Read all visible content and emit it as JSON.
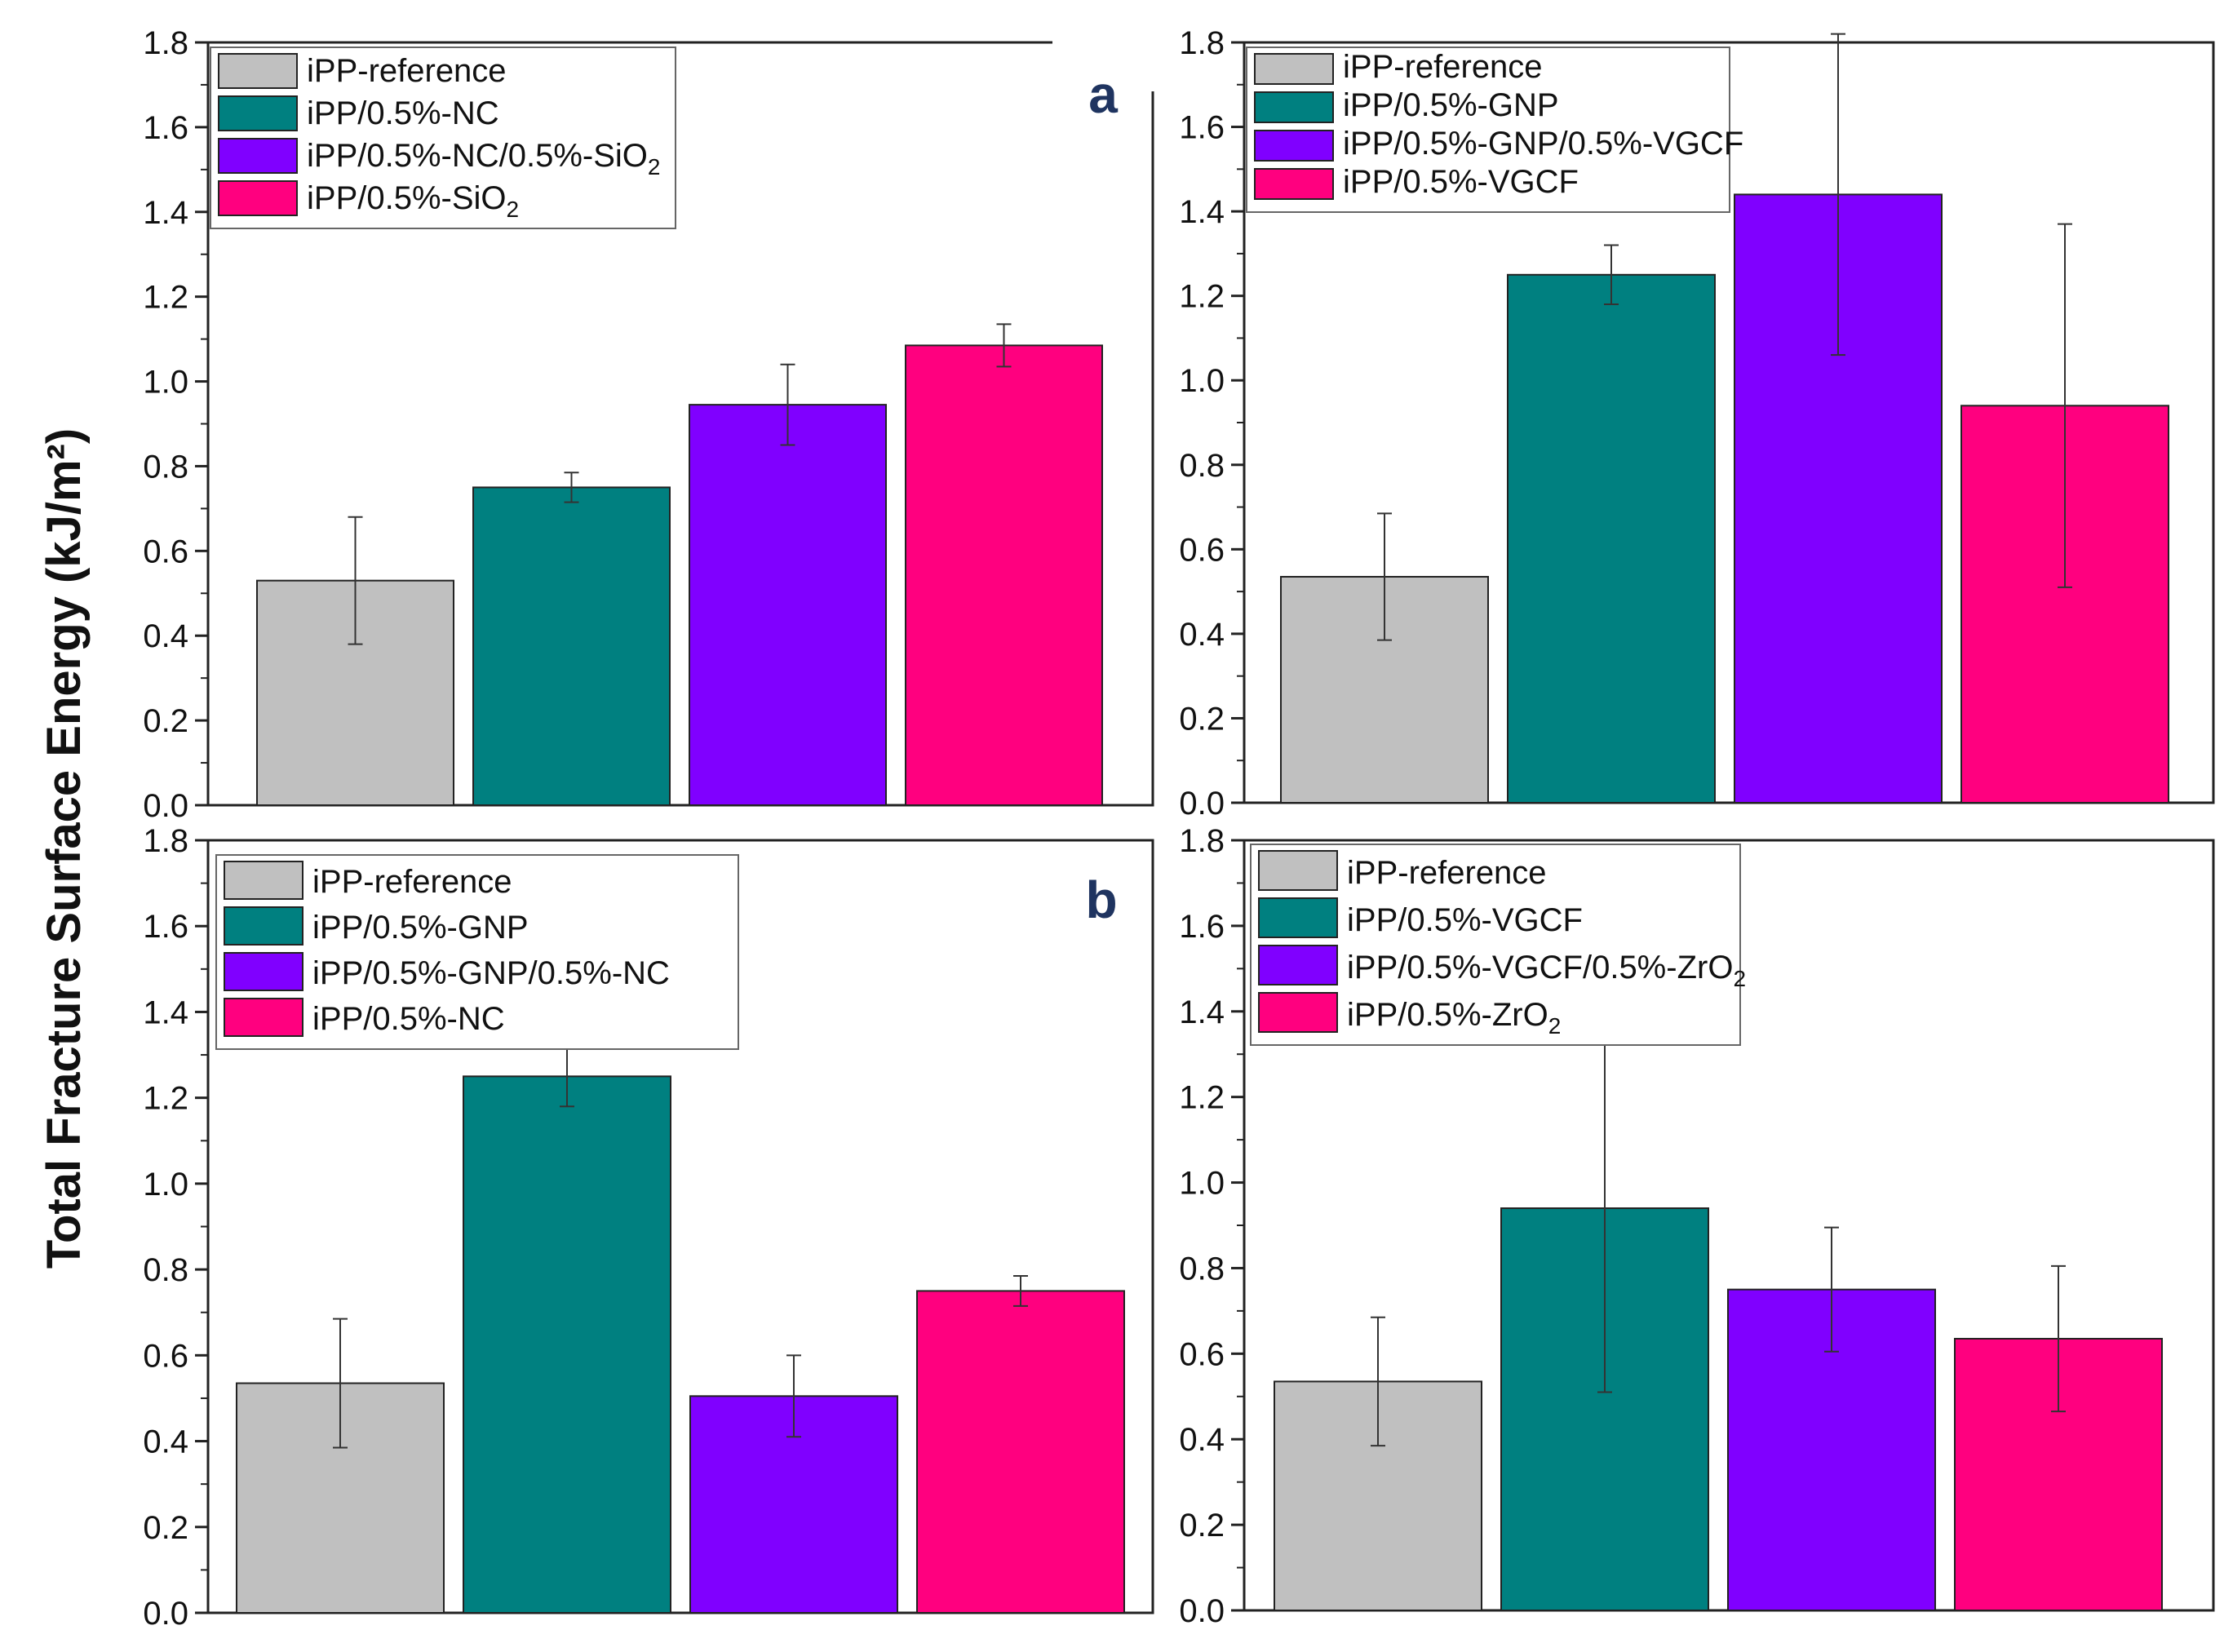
{
  "figure": {
    "ylabel": "Total Fracture Surface Energy (kJ/m²)",
    "colors": {
      "reference": "#c0c0c0",
      "series2": "#008080",
      "series3": "#8000ff",
      "series4": "#ff007f",
      "panel_letter": "#1f3460"
    }
  },
  "chart_data": [
    {
      "type": "bar",
      "position": "top-left",
      "panel_letter": "a",
      "ylim": [
        0,
        1.8
      ],
      "yticks": [
        "0.0",
        "0.2",
        "0.4",
        "0.6",
        "0.8",
        "1.0",
        "1.2",
        "1.4",
        "1.6",
        "1.8"
      ],
      "legend_position": "top-left",
      "series": [
        {
          "name": "iPP-reference",
          "value": 0.53,
          "error": 0.15,
          "color": "#c0c0c0"
        },
        {
          "name": "iPP/0.5%-NC",
          "value": 0.75,
          "error": 0.035,
          "color": "#008080"
        },
        {
          "name": "iPP/0.5%-NC/0.5%-SiO2",
          "label_main": "iPP/0.5%-NC/0.5%-SiO",
          "label_sub": "2",
          "value": 0.945,
          "error": 0.095,
          "color": "#8000ff"
        },
        {
          "name": "iPP/0.5%-SiO2",
          "label_main": "iPP/0.5%-SiO",
          "label_sub": "2",
          "value": 1.085,
          "error": 0.05,
          "color": "#ff007f"
        }
      ]
    },
    {
      "type": "bar",
      "position": "top-right",
      "ylim": [
        0,
        1.8
      ],
      "yticks": [
        "0.0",
        "0.2",
        "0.4",
        "0.6",
        "0.8",
        "1.0",
        "1.2",
        "1.4",
        "1.6",
        "1.8"
      ],
      "legend_position": "top-left",
      "series": [
        {
          "name": "iPP-reference",
          "value": 0.535,
          "error": 0.15,
          "color": "#c0c0c0"
        },
        {
          "name": "iPP/0.5%-GNP",
          "value": 1.25,
          "error": 0.07,
          "color": "#008080"
        },
        {
          "name": "iPP/0.5%-GNP/0.5%-VGCF",
          "value": 1.44,
          "error": 0.38,
          "color": "#8000ff"
        },
        {
          "name": "iPP/0.5%-VGCF",
          "value": 0.94,
          "error": 0.43,
          "color": "#ff007f"
        }
      ]
    },
    {
      "type": "bar",
      "position": "bottom-left",
      "panel_letter": "b",
      "ylim": [
        0,
        1.8
      ],
      "yticks": [
        "0.0",
        "0.2",
        "0.4",
        "0.6",
        "0.8",
        "1.0",
        "1.2",
        "1.4",
        "1.6",
        "1.8"
      ],
      "legend_position": "top-left",
      "series": [
        {
          "name": "iPP-reference",
          "value": 0.535,
          "error": 0.15,
          "color": "#c0c0c0"
        },
        {
          "name": "iPP/0.5%-GNP",
          "value": 1.25,
          "error": 0.07,
          "color": "#008080"
        },
        {
          "name": "iPP/0.5%-GNP/0.5%-NC",
          "value": 0.505,
          "error": 0.095,
          "color": "#8000ff"
        },
        {
          "name": "iPP/0.5%-NC",
          "value": 0.75,
          "error": 0.035,
          "color": "#ff007f"
        }
      ]
    },
    {
      "type": "bar",
      "position": "bottom-right",
      "ylim": [
        0,
        1.8
      ],
      "yticks": [
        "0.0",
        "0.2",
        "0.4",
        "0.6",
        "0.8",
        "1.0",
        "1.2",
        "1.4",
        "1.6",
        "1.8"
      ],
      "legend_position": "top-left",
      "series": [
        {
          "name": "iPP-reference",
          "value": 0.535,
          "error": 0.15,
          "color": "#c0c0c0"
        },
        {
          "name": "iPP/0.5%-VGCF",
          "value": 0.94,
          "error": 0.43,
          "color": "#008080"
        },
        {
          "name": "iPP/0.5%-VGCF/0.5%-ZrO2",
          "label_main": "iPP/0.5%-VGCF/0.5%-ZrO",
          "label_sub": "2",
          "value": 0.75,
          "error": 0.145,
          "color": "#8000ff"
        },
        {
          "name": "iPP/0.5%-ZrO2",
          "label_main": "iPP/0.5%-ZrO",
          "label_sub": "2",
          "value": 0.635,
          "error": 0.17,
          "color": "#ff007f"
        }
      ]
    }
  ]
}
